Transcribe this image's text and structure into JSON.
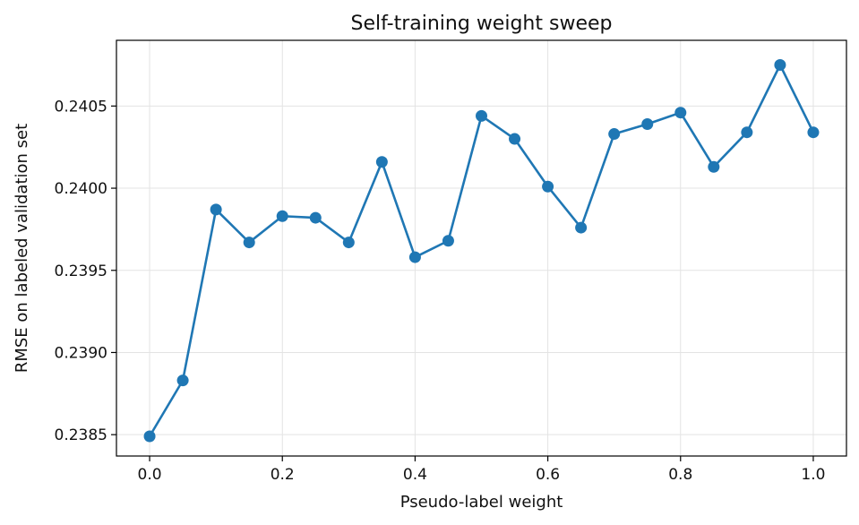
{
  "chart_data": {
    "type": "line",
    "title": "Self-training weight sweep",
    "xlabel": "Pseudo-label weight",
    "ylabel": "RMSE on labeled validation set",
    "xlim": [
      -0.05,
      1.05
    ],
    "ylim": [
      0.23837,
      0.2409
    ],
    "xticks": [
      0.0,
      0.2,
      0.4,
      0.6,
      0.8,
      1.0
    ],
    "xtick_labels": [
      "0.0",
      "0.2",
      "0.4",
      "0.6",
      "0.8",
      "1.0"
    ],
    "yticks": [
      0.2385,
      0.239,
      0.2395,
      0.24,
      0.2405
    ],
    "ytick_labels": [
      "0.2385",
      "0.2390",
      "0.2395",
      "0.2400",
      "0.2405"
    ],
    "grid": true,
    "legend": "none",
    "series": [
      {
        "color": "#1f77b4",
        "marker": "circle",
        "x": [
          0.0,
          0.05,
          0.1,
          0.15,
          0.2,
          0.25,
          0.3,
          0.35,
          0.4,
          0.45,
          0.5,
          0.55,
          0.6,
          0.65,
          0.7,
          0.75,
          0.8,
          0.85,
          0.9,
          0.95,
          1.0
        ],
        "y": [
          0.23849,
          0.23883,
          0.23987,
          0.23967,
          0.23983,
          0.23982,
          0.23967,
          0.24016,
          0.23958,
          0.23968,
          0.24044,
          0.2403,
          0.24001,
          0.23976,
          0.24033,
          0.24039,
          0.24046,
          0.24013,
          0.24034,
          0.24075,
          0.24034
        ]
      }
    ]
  }
}
